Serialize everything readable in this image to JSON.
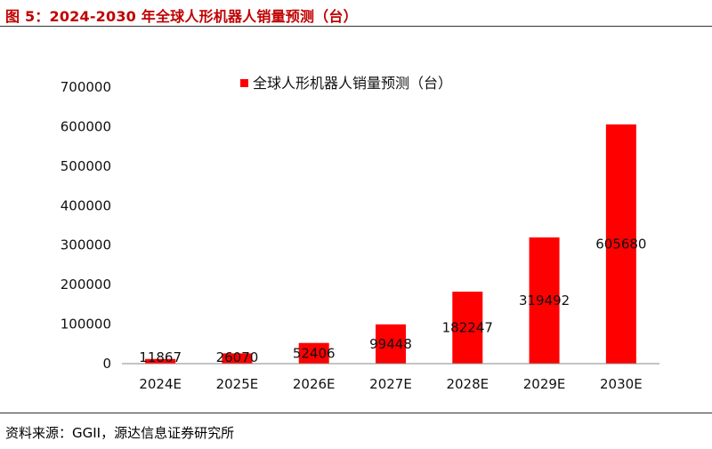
{
  "figure": {
    "title": "图 5：2024-2030 年全球人形机器人销量预测（台）",
    "source": "资料来源：GGII，源达信息证券研究所"
  },
  "colors": {
    "bar": "#ff0000",
    "title": "#c00000"
  },
  "chart_data": {
    "type": "bar",
    "categories": [
      "2024E",
      "2025E",
      "2026E",
      "2027E",
      "2028E",
      "2029E",
      "2030E"
    ],
    "series": [
      {
        "name": "全球人形机器人销量预测（台）",
        "values": [
          11867,
          26070,
          52406,
          99448,
          182247,
          319492,
          605680
        ]
      }
    ],
    "ylim": [
      0,
      700000
    ],
    "yticks": [
      0,
      100000,
      200000,
      300000,
      400000,
      500000,
      600000,
      700000
    ],
    "grid": false,
    "legend_position": "top-center",
    "data_labels": true
  }
}
